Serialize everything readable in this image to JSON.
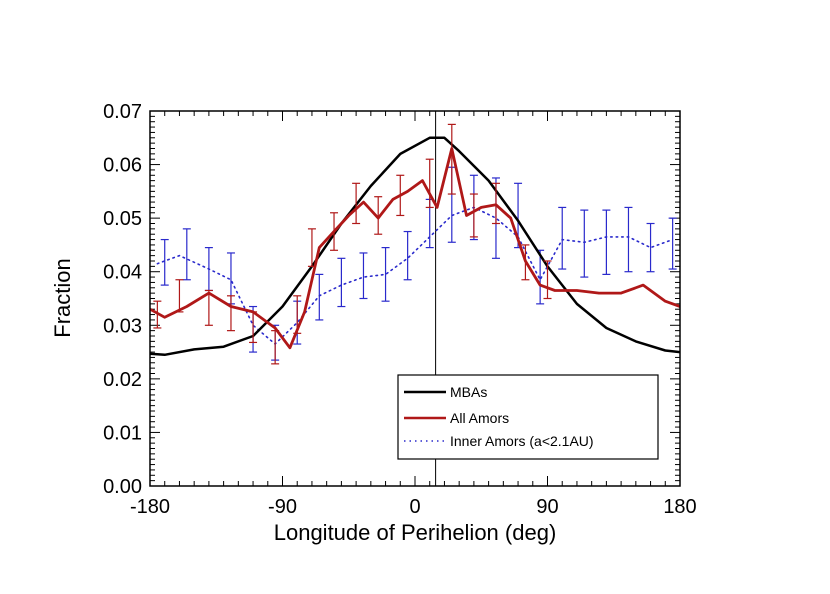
{
  "chart_data": {
    "type": "line",
    "title": "",
    "xlabel": "Longitude of Perihelion (deg)",
    "ylabel": "Fraction",
    "xlim": [
      -180,
      180
    ],
    "ylim": [
      0.0,
      0.07
    ],
    "x_ticks": [
      -180,
      -90,
      0,
      90,
      180
    ],
    "x_tick_labels": [
      "-180",
      "-90",
      "0",
      "90",
      "180"
    ],
    "y_ticks": [
      0.0,
      0.01,
      0.02,
      0.03,
      0.04,
      0.05,
      0.06,
      0.07
    ],
    "y_tick_labels": [
      "0.00",
      "0.01",
      "0.02",
      "0.03",
      "0.04",
      "0.05",
      "0.06",
      "0.07"
    ],
    "vertical_line_x": 14,
    "legend_position": "bottom-right",
    "series": [
      {
        "name": "MBAs",
        "color": "#000000",
        "style": "solid",
        "x": [
          -180,
          -170,
          -150,
          -130,
          -110,
          -90,
          -70,
          -50,
          -30,
          -10,
          10,
          20,
          30,
          50,
          70,
          90,
          110,
          130,
          150,
          170,
          180
        ],
        "values": [
          0.0247,
          0.0245,
          0.0255,
          0.026,
          0.028,
          0.0335,
          0.041,
          0.049,
          0.056,
          0.062,
          0.065,
          0.065,
          0.0625,
          0.057,
          0.0495,
          0.041,
          0.034,
          0.0295,
          0.027,
          0.0253,
          0.025
        ]
      },
      {
        "name": "All Amors",
        "color": "#b01818",
        "style": "solid",
        "x": [
          -180,
          -170,
          -155,
          -140,
          -125,
          -110,
          -95,
          -85,
          -75,
          -65,
          -55,
          -45,
          -35,
          -25,
          -15,
          -5,
          5,
          15,
          25,
          35,
          45,
          55,
          65,
          75,
          85,
          95,
          110,
          125,
          140,
          155,
          170,
          180
        ],
        "values": [
          0.033,
          0.0315,
          0.0335,
          0.036,
          0.0335,
          0.0325,
          0.0295,
          0.0258,
          0.0325,
          0.0445,
          0.0475,
          0.0505,
          0.053,
          0.05,
          0.0535,
          0.055,
          0.057,
          0.052,
          0.063,
          0.0505,
          0.052,
          0.0525,
          0.05,
          0.042,
          0.0375,
          0.0365,
          0.0365,
          0.036,
          0.036,
          0.0375,
          0.0345,
          0.0335
        ],
        "error_bars": [
          {
            "x": -175,
            "low": 0.0295,
            "high": 0.0345
          },
          {
            "x": -160,
            "low": 0.0325,
            "high": 0.0385
          },
          {
            "x": -140,
            "low": 0.03,
            "high": 0.0365
          },
          {
            "x": -125,
            "low": 0.029,
            "high": 0.0355
          },
          {
            "x": -110,
            "low": 0.0268,
            "high": 0.0325
          },
          {
            "x": -95,
            "low": 0.0228,
            "high": 0.029
          },
          {
            "x": -80,
            "low": 0.0285,
            "high": 0.0355
          },
          {
            "x": -70,
            "low": 0.041,
            "high": 0.048
          },
          {
            "x": -55,
            "low": 0.044,
            "high": 0.051
          },
          {
            "x": -40,
            "low": 0.049,
            "high": 0.0565
          },
          {
            "x": -25,
            "low": 0.047,
            "high": 0.054
          },
          {
            "x": -10,
            "low": 0.0505,
            "high": 0.058
          },
          {
            "x": 10,
            "low": 0.052,
            "high": 0.061
          },
          {
            "x": 25,
            "low": 0.0545,
            "high": 0.0675
          },
          {
            "x": 40,
            "low": 0.0465,
            "high": 0.0545
          },
          {
            "x": 55,
            "low": 0.049,
            "high": 0.0565
          },
          {
            "x": 75,
            "low": 0.0385,
            "high": 0.045
          },
          {
            "x": 90,
            "low": 0.035,
            "high": 0.042
          }
        ]
      },
      {
        "name": "Inner Amors (a<2.1AU)",
        "color": "#2a2acc",
        "style": "dotted",
        "x": [
          -175,
          -160,
          -140,
          -125,
          -110,
          -95,
          -80,
          -65,
          -50,
          -35,
          -20,
          -5,
          10,
          25,
          40,
          55,
          70,
          85,
          100,
          115,
          130,
          145,
          160,
          175
        ],
        "values": [
          0.0415,
          0.043,
          0.0405,
          0.0385,
          0.03,
          0.0265,
          0.0305,
          0.0355,
          0.0375,
          0.039,
          0.0395,
          0.0425,
          0.0465,
          0.0505,
          0.052,
          0.05,
          0.0465,
          0.0385,
          0.046,
          0.0455,
          0.0465,
          0.0465,
          0.0445,
          0.046
        ],
        "error_bars": [
          {
            "x": -170,
            "low": 0.0375,
            "high": 0.046
          },
          {
            "x": -155,
            "low": 0.0385,
            "high": 0.048
          },
          {
            "x": -140,
            "low": 0.0365,
            "high": 0.0445
          },
          {
            "x": -125,
            "low": 0.034,
            "high": 0.0435
          },
          {
            "x": -110,
            "low": 0.025,
            "high": 0.0335
          },
          {
            "x": -95,
            "low": 0.0235,
            "high": 0.03
          },
          {
            "x": -80,
            "low": 0.0265,
            "high": 0.0345
          },
          {
            "x": -65,
            "low": 0.031,
            "high": 0.0395
          },
          {
            "x": -50,
            "low": 0.0335,
            "high": 0.0425
          },
          {
            "x": -35,
            "low": 0.035,
            "high": 0.0435
          },
          {
            "x": -20,
            "low": 0.0345,
            "high": 0.0445
          },
          {
            "x": -5,
            "low": 0.0385,
            "high": 0.0475
          },
          {
            "x": 10,
            "low": 0.0445,
            "high": 0.0535
          },
          {
            "x": 25,
            "low": 0.0455,
            "high": 0.0595
          },
          {
            "x": 40,
            "low": 0.046,
            "high": 0.058
          },
          {
            "x": 55,
            "low": 0.0425,
            "high": 0.0575
          },
          {
            "x": 70,
            "low": 0.0445,
            "high": 0.0565
          },
          {
            "x": 85,
            "low": 0.034,
            "high": 0.044
          },
          {
            "x": 100,
            "low": 0.0405,
            "high": 0.052
          },
          {
            "x": 115,
            "low": 0.039,
            "high": 0.0515
          },
          {
            "x": 130,
            "low": 0.0395,
            "high": 0.0515
          },
          {
            "x": 145,
            "low": 0.04,
            "high": 0.052
          },
          {
            "x": 160,
            "low": 0.04,
            "high": 0.049
          },
          {
            "x": 175,
            "low": 0.0405,
            "high": 0.05
          }
        ]
      }
    ]
  }
}
